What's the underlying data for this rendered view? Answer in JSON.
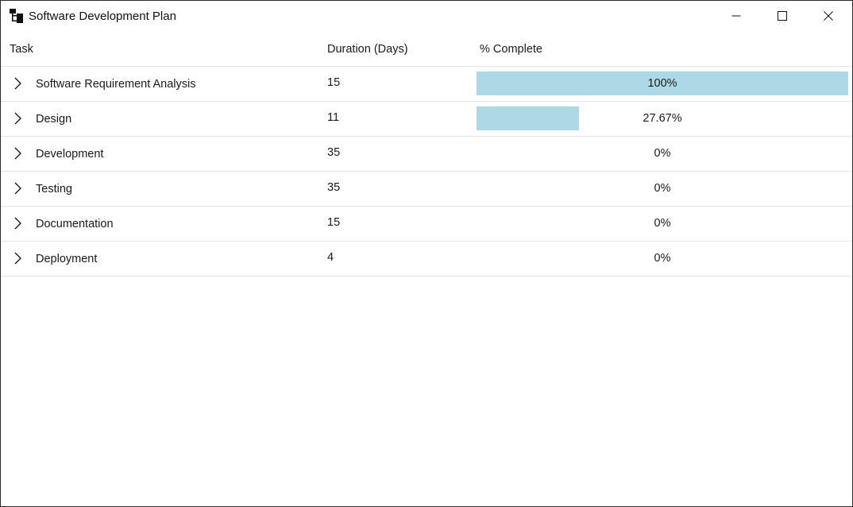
{
  "window": {
    "title": "Software Development Plan",
    "icon": "tree-hierarchy-icon"
  },
  "columns": {
    "task": "Task",
    "duration": "Duration (Days)",
    "complete": "% Complete"
  },
  "rows": [
    {
      "task": "Software Requirement Analysis",
      "duration": "15",
      "complete_label": "100%",
      "complete_fraction": 1.0
    },
    {
      "task": "Design",
      "duration": "11",
      "complete_label": "27.67%",
      "complete_fraction": 0.2767
    },
    {
      "task": "Development",
      "duration": "35",
      "complete_label": "0%",
      "complete_fraction": 0
    },
    {
      "task": "Testing",
      "duration": "35",
      "complete_label": "0%",
      "complete_fraction": 0
    },
    {
      "task": "Documentation",
      "duration": "15",
      "complete_label": "0%",
      "complete_fraction": 0
    },
    {
      "task": "Deployment",
      "duration": "4",
      "complete_label": "0%",
      "complete_fraction": 0
    }
  ],
  "colors": {
    "progress_fill": "#add8e6"
  }
}
